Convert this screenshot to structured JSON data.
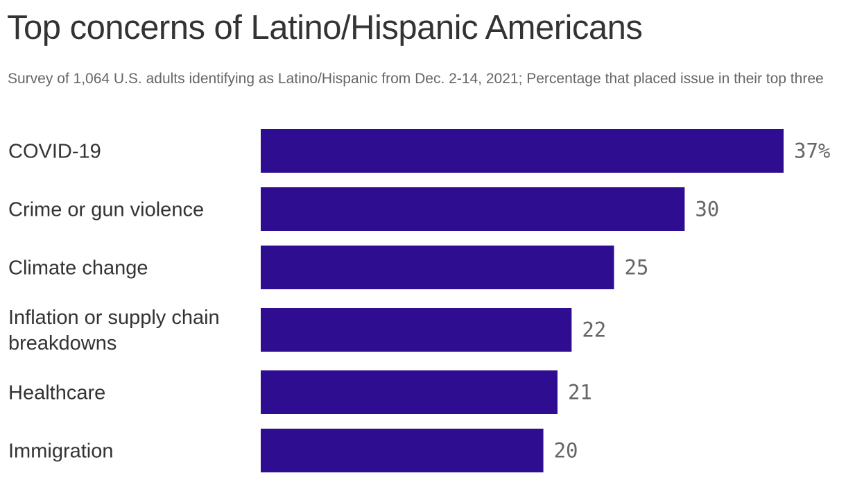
{
  "title": "Top concerns of Latino/Hispanic Americans",
  "subtitle": "Survey of 1,064 U.S. adults identifying as Latino/Hispanic from Dec. 2-14, 2021; Percentage that placed issue in their top three",
  "colors": {
    "bar": "#2e0d91",
    "title": "#333333",
    "subtitle": "#666666",
    "value": "#666666"
  },
  "chart_data": {
    "type": "bar",
    "orientation": "horizontal",
    "title": "Top concerns of Latino/Hispanic Americans",
    "subtitle": "Survey of 1,064 U.S. adults identifying as Latino/Hispanic from Dec. 2-14, 2021; Percentage that placed issue in their top three",
    "categories": [
      [
        "COVID-19"
      ],
      [
        "Crime or gun violence"
      ],
      [
        "Climate change"
      ],
      [
        "Inflation or supply chain",
        "breakdowns"
      ],
      [
        "Healthcare"
      ],
      [
        "Immigration"
      ]
    ],
    "values": [
      37,
      30,
      25,
      22,
      21,
      20
    ],
    "value_labels": [
      "37%",
      "30",
      "25",
      "22",
      "21",
      "20"
    ],
    "xlim": [
      0,
      37
    ],
    "grid": false,
    "legend": "none"
  }
}
